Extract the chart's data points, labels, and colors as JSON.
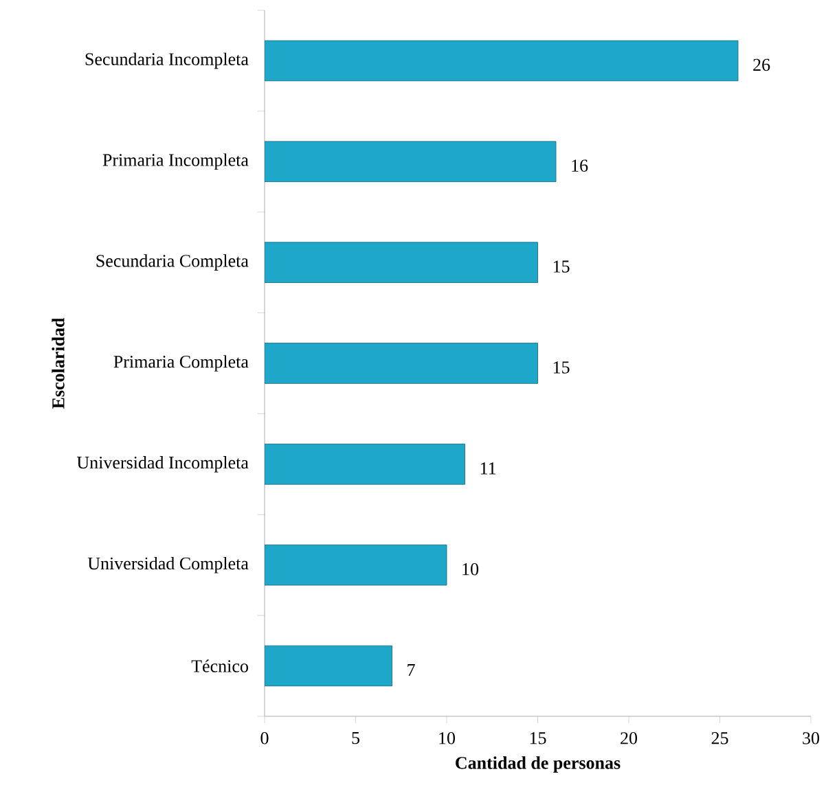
{
  "chart_data": {
    "type": "bar",
    "orientation": "horizontal",
    "xlabel": "Cantidad de personas",
    "ylabel": "Escolaridad",
    "categories": [
      "Secundaria Incompleta",
      "Primaria Incompleta",
      "Secundaria Completa",
      "Primaria Completa",
      "Universidad Incompleta",
      "Universidad Completa",
      "Técnico"
    ],
    "values": [
      26,
      16,
      15,
      15,
      11,
      10,
      7
    ],
    "color": "#1fa7c9",
    "xlim": [
      0,
      30
    ],
    "xticks": [
      0,
      5,
      10,
      15,
      20,
      25,
      30
    ],
    "data_labels": true
  }
}
